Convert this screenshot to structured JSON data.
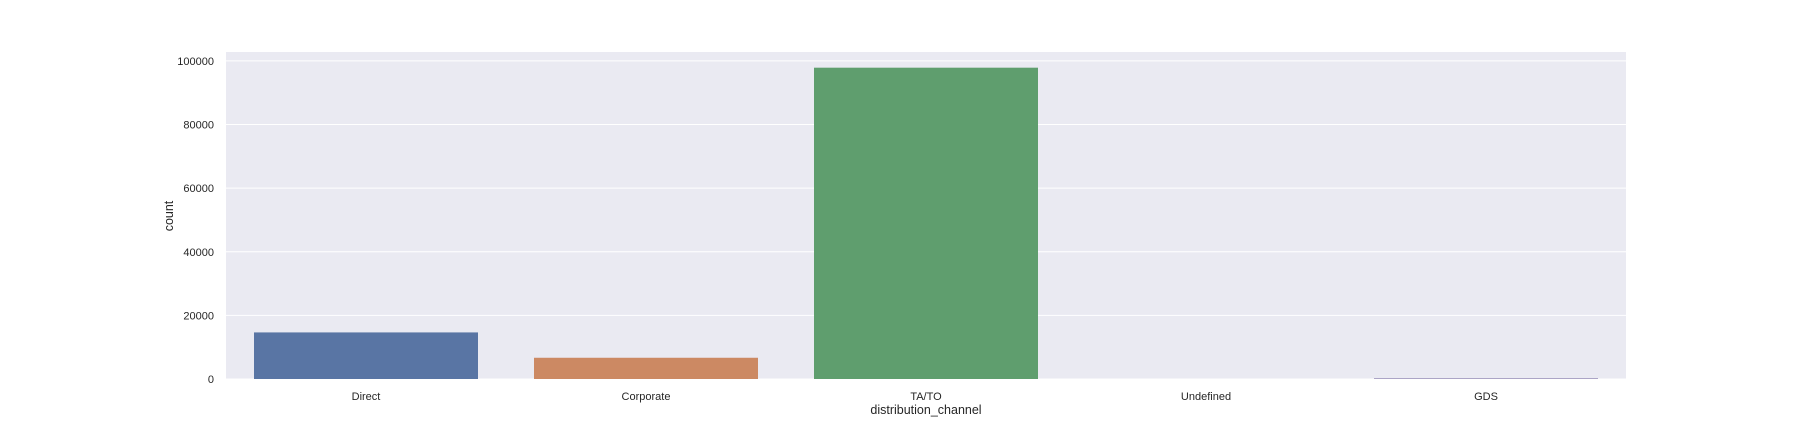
{
  "chart_data": {
    "type": "bar",
    "title": "",
    "xlabel": "distribution_channel",
    "ylabel": "count",
    "categories": [
      "Direct",
      "Corporate",
      "TA/TO",
      "Undefined",
      "GDS"
    ],
    "values": [
      14645,
      6677,
      97870,
      1,
      193
    ],
    "colors": [
      "#5975a4",
      "#cc8963",
      "#5f9e6e",
      "#b55d60",
      "#857aab"
    ],
    "ylim": [
      0,
      102800
    ],
    "yticks": [
      0,
      20000,
      40000,
      60000,
      80000,
      100000
    ],
    "ytick_labels": [
      "0",
      "20000",
      "40000",
      "60000",
      "80000",
      "100000"
    ],
    "grid": true,
    "background": "#eaeaf2",
    "legend": "none"
  }
}
